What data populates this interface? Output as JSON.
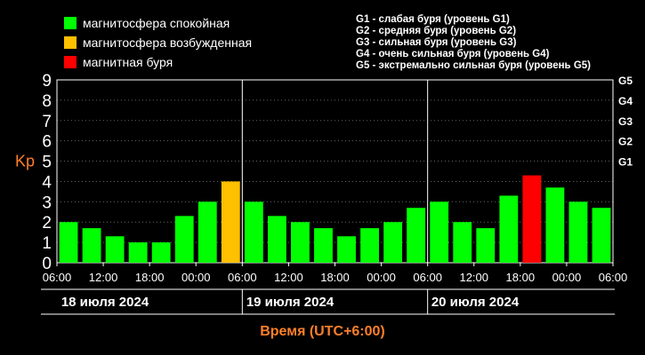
{
  "legend": [
    {
      "label": "магнитосфера спокойная",
      "color": "#00ff00"
    },
    {
      "label": "магнитосфера возбужденная",
      "color": "#ffc000"
    },
    {
      "label": "магнитная буря",
      "color": "#ff0000"
    }
  ],
  "storm_levels": [
    "G1 - слабая буря (уровень G1)",
    "G2 - средняя буря (уровень G2)",
    "G3 - сильная буря (уровень G3)",
    "G4 - очень сильная буря (уровень G4)",
    "G5 - экстремально сильная буря (уровень G5)"
  ],
  "chart_data": {
    "type": "bar",
    "ylabel": "Kp",
    "xlabel": "Время (UTC+6:00)",
    "ylim": [
      0,
      9
    ],
    "y_ticks": [
      0,
      1,
      2,
      3,
      4,
      5,
      6,
      7,
      8,
      9
    ],
    "right_ticks": [
      {
        "label": "G1",
        "y": 5
      },
      {
        "label": "G2",
        "y": 6
      },
      {
        "label": "G3",
        "y": 7
      },
      {
        "label": "G4",
        "y": 8
      },
      {
        "label": "G5",
        "y": 9
      }
    ],
    "x_tick_labels": [
      "06:00",
      "12:00",
      "18:00",
      "00:00",
      "06:00",
      "12:00",
      "18:00",
      "00:00",
      "06:00",
      "12:00",
      "18:00",
      "00:00",
      "06:00"
    ],
    "days": [
      "18 июля 2024",
      "19 июля 2024",
      "20 июля 2024"
    ],
    "grid": true,
    "colors": {
      "quiet": "#00ff00",
      "active": "#ffc000",
      "storm": "#ff0000",
      "grid": "#666666",
      "label": "#ff7f2a"
    },
    "values": [
      2.0,
      1.7,
      1.3,
      1.0,
      1.0,
      2.3,
      3.0,
      4.0,
      3.0,
      2.3,
      2.0,
      1.7,
      1.3,
      1.7,
      2.0,
      2.7,
      3.0,
      2.0,
      1.7,
      3.3,
      4.3,
      3.7,
      3.0,
      2.7
    ],
    "status": [
      "quiet",
      "quiet",
      "quiet",
      "quiet",
      "quiet",
      "quiet",
      "quiet",
      "active",
      "quiet",
      "quiet",
      "quiet",
      "quiet",
      "quiet",
      "quiet",
      "quiet",
      "quiet",
      "quiet",
      "quiet",
      "quiet",
      "quiet",
      "storm",
      "quiet",
      "quiet",
      "quiet"
    ]
  }
}
